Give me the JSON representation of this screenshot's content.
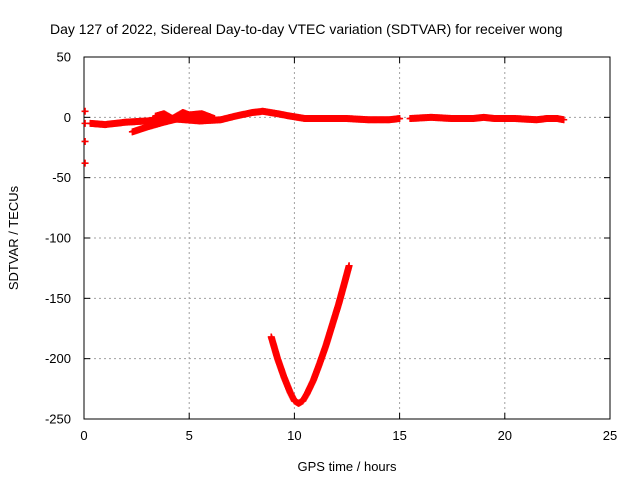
{
  "chart_data": {
    "type": "scatter",
    "title": "Day 127 of 2022, Sidereal Day-to-day VTEC variation (SDTVAR) for receiver wong",
    "xlabel": "GPS time / hours",
    "ylabel": "SDTVAR / TECUs",
    "xlim": [
      0,
      25
    ],
    "ylim": [
      -250,
      50
    ],
    "xticks": [
      0,
      5,
      10,
      15,
      20,
      25
    ],
    "yticks": [
      50,
      0,
      -50,
      -100,
      -150,
      -200,
      -250
    ],
    "grid": true,
    "marker": "+",
    "color": "#ff0000",
    "series": [
      {
        "name": "track-main",
        "x": [
          0.3,
          1.0,
          2.0,
          3.0,
          4.0,
          4.8,
          5.5,
          6.5,
          7.2,
          8.0,
          8.5,
          9.2,
          9.8,
          10.5,
          11.5,
          12.5,
          13.5,
          14.5,
          15.0
        ],
        "y": [
          -5,
          -6,
          -4,
          -3,
          -1,
          -2,
          -3,
          -2,
          1,
          4,
          5,
          3,
          1,
          -1,
          -1,
          -1,
          -2,
          -2,
          -1
        ]
      },
      {
        "name": "track-rising",
        "x": [
          2.3,
          3.0,
          3.8,
          4.5,
          5.0,
          5.6
        ],
        "y": [
          -12,
          -8,
          -4,
          -1,
          1,
          0
        ]
      },
      {
        "name": "track-bump",
        "x": [
          3.4,
          3.8,
          4.2,
          4.7,
          5.0,
          5.6,
          6.2
        ],
        "y": [
          1,
          3,
          -1,
          4,
          2,
          3,
          -1
        ]
      },
      {
        "name": "track-late",
        "x": [
          15.5,
          16.5,
          17.5,
          18.5,
          19.0,
          19.5,
          20.5,
          21.5,
          22.0,
          22.5,
          22.8
        ],
        "y": [
          -1,
          0,
          -1,
          -1,
          0,
          -1,
          -1,
          -2,
          -1,
          -1,
          -2
        ]
      },
      {
        "name": "track-dip",
        "x": [
          8.9,
          9.2,
          9.5,
          9.8,
          10.0,
          10.2,
          10.4,
          10.6,
          10.9,
          11.2,
          11.5,
          11.8,
          12.1,
          12.4,
          12.6
        ],
        "y": [
          -182,
          -200,
          -215,
          -228,
          -235,
          -237,
          -235,
          -229,
          -218,
          -204,
          -189,
          -172,
          -155,
          -136,
          -123
        ]
      },
      {
        "name": "track-edge",
        "x": [
          0.05,
          0.05,
          0.05,
          0.05
        ],
        "y": [
          5,
          -5,
          -20,
          -38
        ]
      }
    ]
  }
}
